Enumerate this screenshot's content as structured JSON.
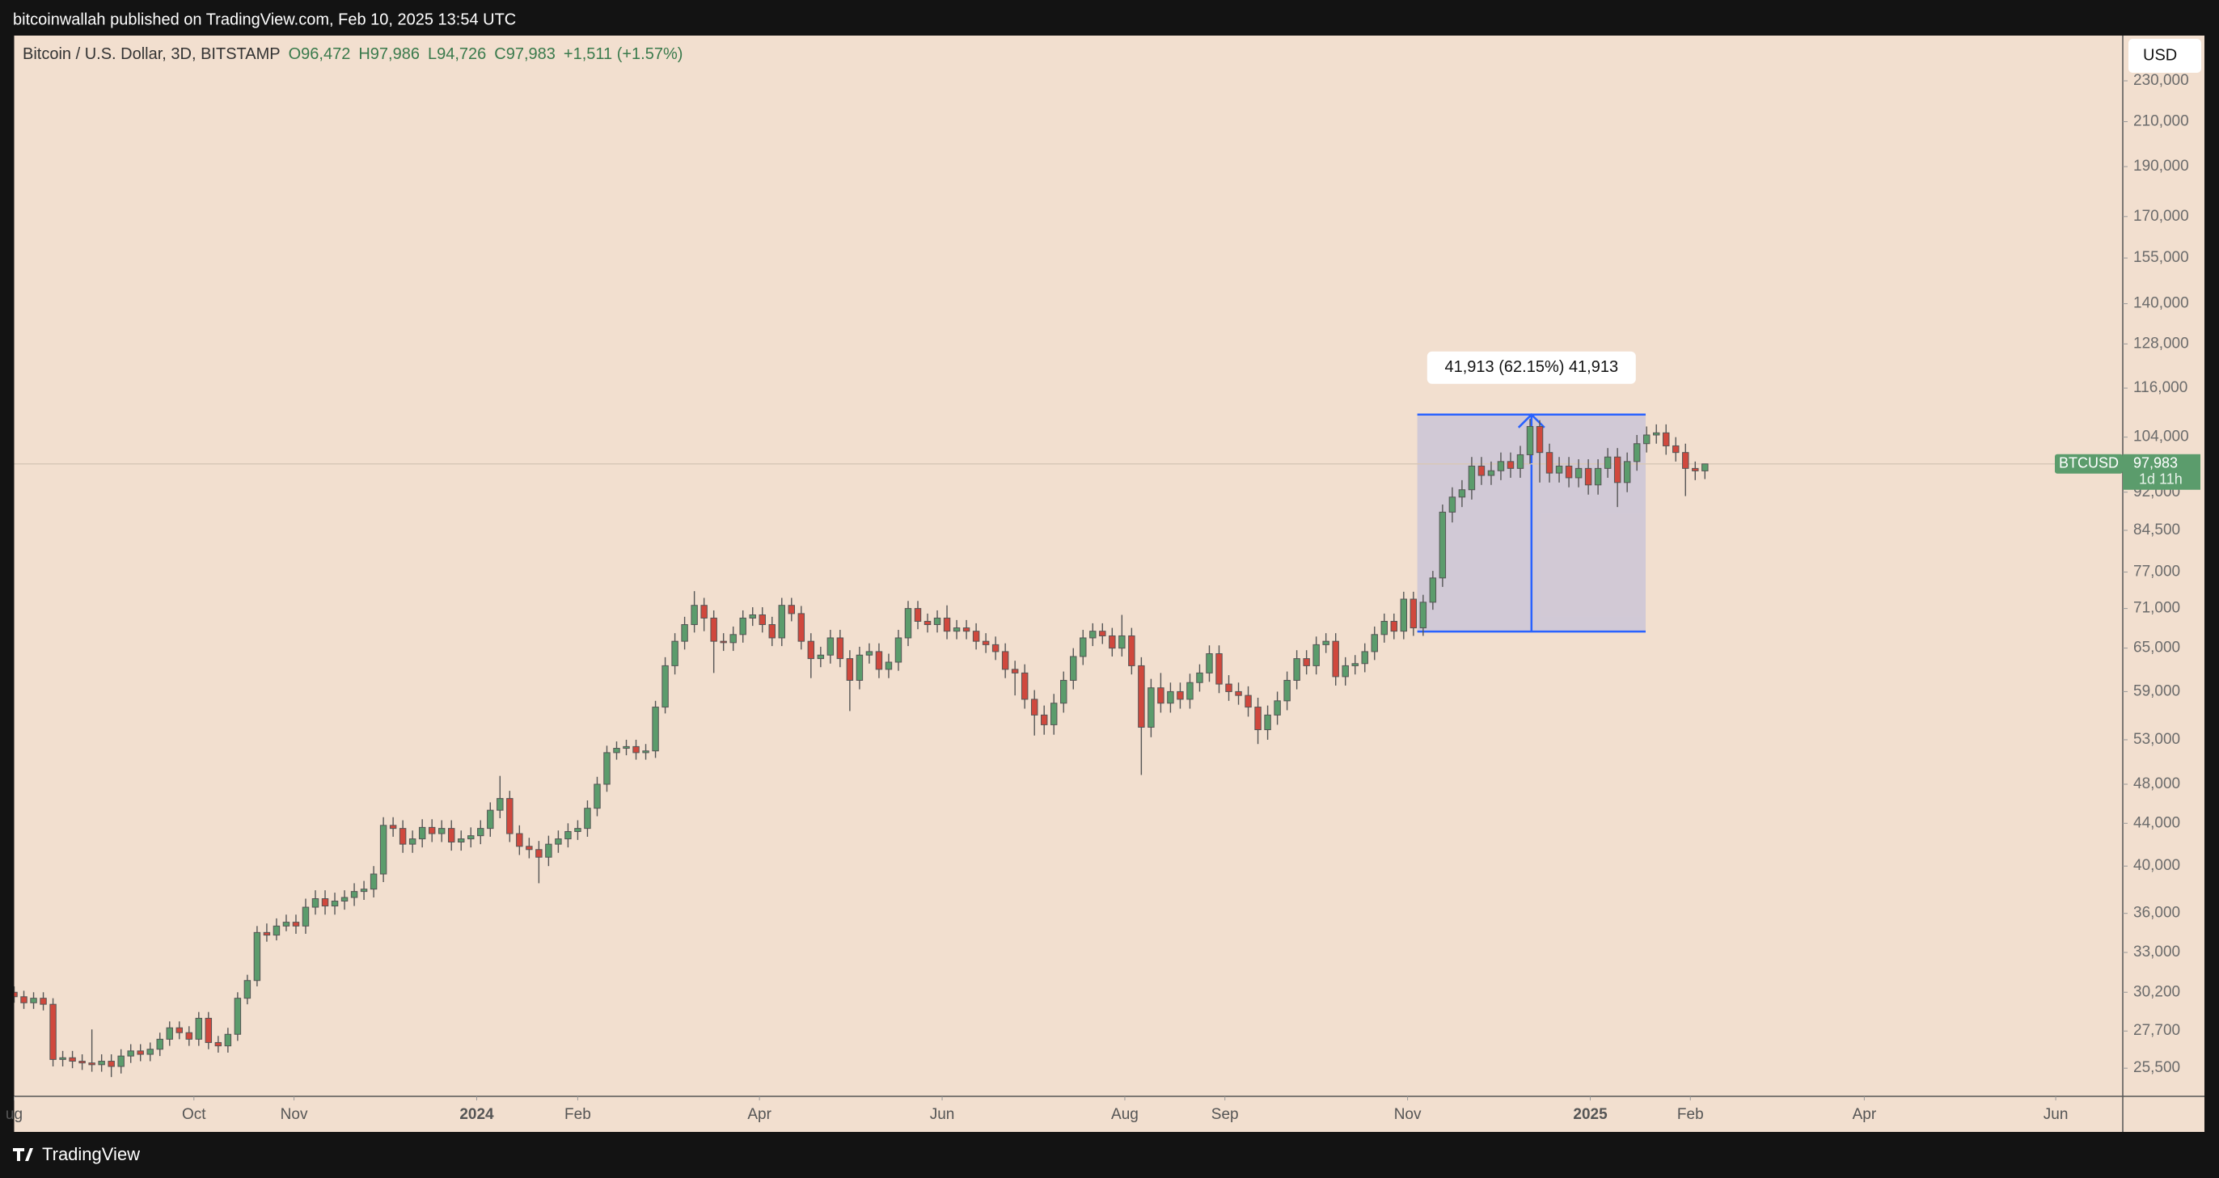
{
  "page": {
    "byline": "bitcoinwallah published on TradingView.com, Feb 10, 2025 13:54 UTC",
    "brand": "TradingView",
    "currency": "USD"
  },
  "chart_data": {
    "type": "candlestick",
    "title": "Bitcoin / U.S. Dollar, 3D, BITSTAMP",
    "ohlc_legend": [
      "O96,472",
      "H97,986",
      "L94,726",
      "C97,983",
      "+1,511 (+1.57%)"
    ],
    "open": [
      30200,
      29900,
      29500,
      29800,
      29400,
      26000,
      26100,
      25900,
      25800,
      25700,
      25900,
      25600,
      26200,
      26500,
      26300,
      26600,
      27200,
      27900,
      27600,
      27200,
      28500,
      27000,
      26800,
      27500,
      29800,
      31000,
      34500,
      34300,
      35000,
      35300,
      35000,
      36500,
      37200,
      36600,
      37000,
      37300,
      37800,
      38000,
      39300,
      43800,
      43500,
      42000,
      42500,
      43600,
      43000,
      43500,
      42200,
      42500,
      42800,
      43500,
      45300,
      46500,
      43000,
      41800,
      41500,
      40800,
      42000,
      42500,
      43200,
      43500,
      45500,
      48000,
      51500,
      52000,
      52200,
      51500,
      51700,
      57000,
      62500,
      66000,
      68500,
      71500,
      69500,
      66000,
      65800,
      67000,
      69500,
      70000,
      68500,
      66500,
      71500,
      70200,
      66000,
      63500,
      64000,
      66500,
      63500,
      60500,
      64000,
      64500,
      62000,
      63000,
      66500,
      71000,
      69000,
      68500,
      69500,
      67500,
      68000,
      67500,
      66000,
      65500,
      64500,
      62000,
      61500,
      58000,
      56000,
      54800,
      57500,
      60500,
      63800,
      66500,
      67500,
      66800,
      65000,
      66800,
      62500,
      54500,
      59500,
      57500,
      59000,
      58000,
      60200,
      61500,
      64200,
      60000,
      59000,
      58500,
      57000,
      54200,
      56000,
      57800,
      60500,
      63500,
      62500,
      65500,
      66000,
      61000,
      62500,
      62800,
      64500,
      67000,
      69000,
      67500,
      72500,
      68000,
      72000,
      76000,
      88000,
      91000,
      92500,
      97500,
      95500,
      96500,
      98500,
      97000,
      100000,
      106500,
      100500,
      96000,
      97500,
      95000,
      97000,
      93500,
      97000,
      99500,
      94000,
      98500,
      102500,
      104500,
      105000,
      102000,
      100500,
      97000,
      96472
    ],
    "high": [
      30600,
      30300,
      30200,
      30200,
      29800,
      26500,
      26500,
      26300,
      27800,
      26300,
      26300,
      26600,
      26900,
      26900,
      27000,
      27600,
      28300,
      28300,
      28000,
      28900,
      28900,
      27400,
      27900,
      30200,
      31400,
      35000,
      35200,
      35600,
      35900,
      35900,
      37200,
      37900,
      37900,
      37700,
      37900,
      38500,
      38700,
      40000,
      44600,
      44600,
      44300,
      43300,
      44400,
      44400,
      44300,
      44300,
      43300,
      43600,
      44300,
      46100,
      48900,
      47300,
      43800,
      42600,
      42300,
      42800,
      43300,
      44000,
      44300,
      46300,
      48800,
      52300,
      52800,
      53000,
      53000,
      52500,
      57800,
      63700,
      67200,
      69700,
      73800,
      72700,
      70700,
      67200,
      68200,
      70700,
      71200,
      71200,
      69700,
      72700,
      72700,
      71400,
      67200,
      65200,
      67700,
      67700,
      64700,
      65200,
      65700,
      65700,
      64200,
      67700,
      72200,
      72200,
      70200,
      70700,
      71500,
      69200,
      69200,
      68700,
      67200,
      66700,
      65700,
      63200,
      62700,
      59200,
      57200,
      58700,
      61700,
      65000,
      67700,
      68700,
      68700,
      68000,
      70000,
      68000,
      63700,
      60700,
      61500,
      60200,
      60200,
      61400,
      62700,
      65400,
      65400,
      61200,
      60200,
      59700,
      58200,
      57200,
      59000,
      61700,
      64700,
      64700,
      66700,
      67200,
      67200,
      63700,
      64000,
      65700,
      68200,
      70200,
      70200,
      73700,
      73700,
      73200,
      77200,
      89500,
      93000,
      94500,
      99500,
      99500,
      98500,
      100500,
      100500,
      102000,
      108300,
      108000,
      102500,
      99500,
      99500,
      99000,
      99000,
      99000,
      101500,
      101500,
      100500,
      104500,
      106500,
      107000,
      107000,
      104000,
      102500,
      98500,
      97986
    ],
    "low": [
      29500,
      29100,
      29100,
      29000,
      25600,
      25600,
      25500,
      25400,
      25300,
      25300,
      25000,
      25200,
      25800,
      25900,
      25900,
      26200,
      26800,
      27200,
      26800,
      26800,
      26600,
      26400,
      26400,
      27100,
      29400,
      30600,
      33800,
      33900,
      34600,
      34400,
      34400,
      35900,
      35900,
      35900,
      36300,
      36600,
      37100,
      37300,
      38600,
      42700,
      41200,
      41200,
      41700,
      42200,
      42200,
      41400,
      41400,
      41700,
      42000,
      42700,
      44500,
      42200,
      41000,
      40700,
      38500,
      40000,
      41200,
      41700,
      42400,
      42700,
      44700,
      47200,
      50700,
      51200,
      50700,
      50700,
      50900,
      56200,
      61300,
      64800,
      67300,
      67500,
      61500,
      64600,
      64600,
      65800,
      68300,
      67300,
      65300,
      65300,
      69000,
      64800,
      60800,
      62300,
      62800,
      62300,
      56500,
      59300,
      62800,
      60800,
      60800,
      61800,
      65300,
      67800,
      67300,
      67300,
      66300,
      66300,
      66300,
      64800,
      64300,
      63300,
      60800,
      58500,
      56800,
      53500,
      53600,
      53600,
      56300,
      59300,
      62600,
      65300,
      65600,
      63800,
      63800,
      61300,
      49000,
      53300,
      56300,
      56300,
      56800,
      56800,
      59000,
      60300,
      58800,
      57800,
      57300,
      55800,
      52500,
      53000,
      54800,
      56600,
      59300,
      61300,
      61300,
      64300,
      59800,
      59800,
      61300,
      61600,
      63300,
      65800,
      66300,
      66300,
      66800,
      66800,
      70800,
      74500,
      86000,
      89000,
      90500,
      93500,
      93500,
      94500,
      95000,
      95000,
      98000,
      94000,
      94000,
      94000,
      93000,
      93000,
      91500,
      91500,
      95000,
      89000,
      92000,
      96500,
      100500,
      102500,
      100000,
      98500,
      91200,
      94500,
      94726
    ],
    "close": [
      29900,
      29500,
      29800,
      29400,
      26000,
      26100,
      25900,
      25800,
      25700,
      25900,
      25600,
      26200,
      26500,
      26300,
      26600,
      27200,
      27900,
      27600,
      27200,
      28500,
      27000,
      26800,
      27500,
      29800,
      31000,
      34500,
      34300,
      35000,
      35300,
      35000,
      36500,
      37200,
      36600,
      37000,
      37300,
      37800,
      38000,
      39300,
      43800,
      43500,
      42000,
      42500,
      43600,
      43000,
      43500,
      42200,
      42500,
      42800,
      43500,
      45300,
      46500,
      43000,
      41800,
      41500,
      40800,
      42000,
      42500,
      43200,
      43500,
      45500,
      48000,
      51500,
      52000,
      52200,
      51500,
      51700,
      57000,
      62500,
      66000,
      68500,
      71500,
      69500,
      66000,
      65800,
      67000,
      69500,
      70000,
      68500,
      66500,
      71500,
      70200,
      66000,
      63500,
      64000,
      66500,
      63500,
      60500,
      64000,
      64500,
      62000,
      63000,
      66500,
      71000,
      69000,
      68500,
      69500,
      67500,
      68000,
      67500,
      66000,
      65500,
      64500,
      62000,
      61500,
      58000,
      56000,
      54800,
      57500,
      60500,
      63800,
      66500,
      67500,
      66800,
      65000,
      66800,
      62500,
      54500,
      59500,
      57500,
      59000,
      58000,
      60200,
      61500,
      64200,
      60000,
      59000,
      58500,
      57000,
      54200,
      56000,
      57800,
      60500,
      63500,
      62500,
      65500,
      66000,
      61000,
      62500,
      62800,
      64500,
      67000,
      69000,
      67500,
      72500,
      68000,
      72000,
      76000,
      88000,
      91000,
      92500,
      97500,
      95500,
      96500,
      98500,
      97000,
      100000,
      106500,
      100500,
      96000,
      97500,
      95000,
      97000,
      93500,
      97000,
      99500,
      94000,
      98500,
      102500,
      104500,
      105000,
      102000,
      100500,
      97000,
      96472,
      97983
    ],
    "up_color": "#5b9c6c",
    "down_color": "#d0483d",
    "background": "#f2dfcf",
    "log_scale": true,
    "grid": false,
    "xlim": [
      0,
      217
    ],
    "xticks": [
      {
        "value": 0,
        "label": "ug"
      },
      {
        "value": 18.5,
        "label": "Oct"
      },
      {
        "value": 28.8,
        "label": "Nov"
      },
      {
        "value": 47.6,
        "label": "2024"
      },
      {
        "value": 58,
        "label": "Feb"
      },
      {
        "value": 76.7,
        "label": "Apr"
      },
      {
        "value": 95.5,
        "label": "Jun"
      },
      {
        "value": 114.3,
        "label": "Aug"
      },
      {
        "value": 124.6,
        "label": "Sep"
      },
      {
        "value": 143.4,
        "label": "Nov"
      },
      {
        "value": 162.2,
        "label": "2025"
      },
      {
        "value": 172.5,
        "label": "Feb"
      },
      {
        "value": 190.4,
        "label": "Apr"
      },
      {
        "value": 210.1,
        "label": "Jun"
      }
    ],
    "ylim": [
      23950,
      254400
    ],
    "yticks": [
      {
        "value": 25500,
        "label": "25,500"
      },
      {
        "value": 27700,
        "label": "27,700"
      },
      {
        "value": 30200,
        "label": "30,200"
      },
      {
        "value": 33000,
        "label": "33,000"
      },
      {
        "value": 36000,
        "label": "36,000"
      },
      {
        "value": 40000,
        "label": "40,000"
      },
      {
        "value": 44000,
        "label": "44,000"
      },
      {
        "value": 48000,
        "label": "48,000"
      },
      {
        "value": 53000,
        "label": "53,000"
      },
      {
        "value": 59000,
        "label": "59,000"
      },
      {
        "value": 65000,
        "label": "65,000"
      },
      {
        "value": 71000,
        "label": "71,000"
      },
      {
        "value": 77000,
        "label": "77,000"
      },
      {
        "value": 84500,
        "label": "84,500"
      },
      {
        "value": 92000,
        "label": "92,000"
      },
      {
        "value": 104000,
        "label": "104,000"
      },
      {
        "value": 116000,
        "label": "116,000"
      },
      {
        "value": 128000,
        "label": "128,000"
      },
      {
        "value": 140000,
        "label": "140,000"
      },
      {
        "value": 155000,
        "label": "155,000"
      },
      {
        "value": 170000,
        "label": "170,000"
      },
      {
        "value": 190000,
        "label": "190,000"
      },
      {
        "value": 210000,
        "label": "210,000"
      },
      {
        "value": 230000,
        "label": "230,000"
      }
    ],
    "last_price": {
      "symbol": "BTCUSD",
      "value": 97983,
      "value_label": "97,983",
      "countdown": "1d 11h"
    },
    "measure": {
      "x": [
        144.4,
        167.9
      ],
      "y": [
        67440,
        109353
      ],
      "label": "41,913 (62.15%) 41,913",
      "color": "#2962ff"
    }
  }
}
